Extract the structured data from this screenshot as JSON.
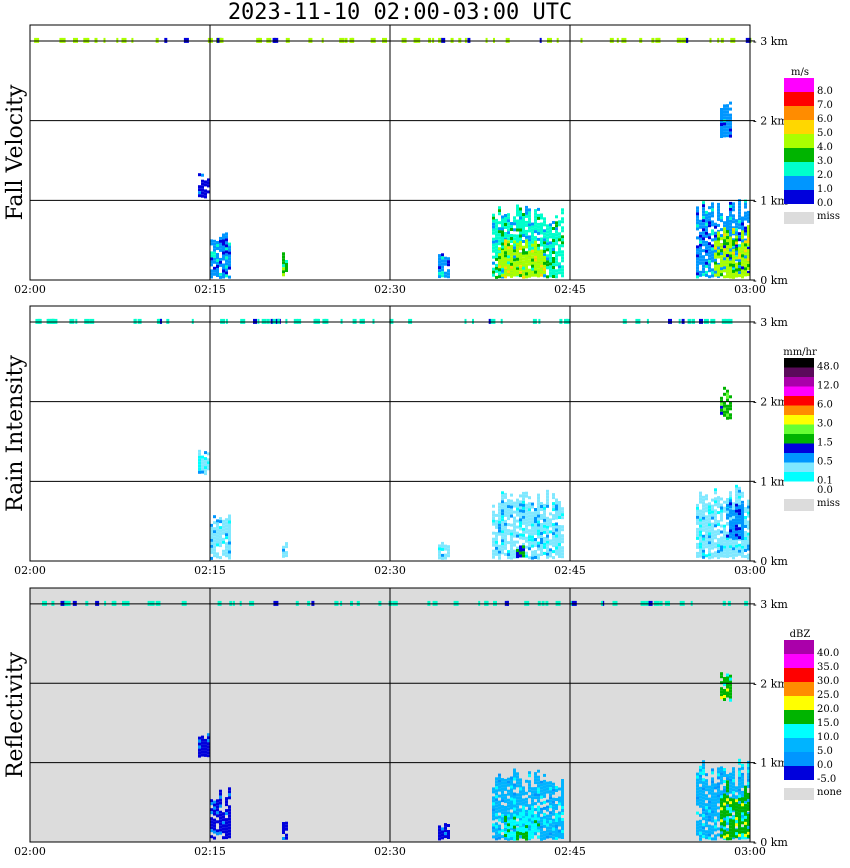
{
  "title": "2023-11-10   02:00-03:00 UTC",
  "chart_data": {
    "type": "heatmap",
    "x_ticks": [
      "02:00",
      "02:15",
      "02:30",
      "02:45",
      "03:00"
    ],
    "x_range_minutes": [
      0,
      60
    ],
    "y_ticks": [
      "0 km",
      "1 km",
      "2 km",
      "3 km"
    ],
    "y_range_km": [
      0,
      3.2
    ],
    "panels": [
      {
        "name": "Fall Velocity",
        "unit": "m/s",
        "background": "#ffffff",
        "levels": [
          "8.0",
          "7.0",
          "6.0",
          "5.0",
          "4.0",
          "3.0",
          "2.0",
          "1.0",
          "0.0"
        ],
        "colors": [
          "#ff00ff",
          "#ff0000",
          "#ff8c00",
          "#ffd700",
          "#aaff00",
          "#00b400",
          "#00ffcc",
          "#0096ff",
          "#0000dc"
        ],
        "missing_label": "miss",
        "missing_color": "#dcdcdc",
        "echoes": [
          {
            "t": [
              14.0,
              15.0
            ],
            "h": [
              1.05,
              1.35
            ],
            "c": 8
          },
          {
            "t": [
              15.0,
              16.5
            ],
            "h": [
              0.05,
              0.65
            ],
            "c": 7
          },
          {
            "t": [
              21.0,
              21.5
            ],
            "h": [
              0.05,
              0.35
            ],
            "c": 5
          },
          {
            "t": [
              34.0,
              35.0
            ],
            "h": [
              0.05,
              0.35
            ],
            "c": 7
          },
          {
            "t": [
              38.5,
              44.5
            ],
            "h": [
              0.05,
              0.95
            ],
            "c": 6
          },
          {
            "t": [
              39.0,
              43.0
            ],
            "h": [
              0.05,
              0.55
            ],
            "c": 4
          },
          {
            "t": [
              55.5,
              60.0
            ],
            "h": [
              0.05,
              1.05
            ],
            "c": 7
          },
          {
            "t": [
              57.0,
              60.0
            ],
            "h": [
              0.05,
              0.7
            ],
            "c": 4
          },
          {
            "t": [
              57.5,
              58.5
            ],
            "h": [
              1.8,
              2.25
            ],
            "c": 7
          }
        ]
      },
      {
        "name": "Rain Intensity",
        "unit": "mm/hr",
        "background": "#ffffff",
        "levels": [
          "48.0",
          "",
          "12.0",
          "",
          "6.0",
          "",
          "3.0",
          "",
          "1.5",
          "",
          "0.5",
          "",
          "0.1",
          "0.0"
        ],
        "colors": [
          "#000000",
          "#5a0a5a",
          "#aa00aa",
          "#ff00ff",
          "#ff0000",
          "#ff8c00",
          "#ffff00",
          "#66ff33",
          "#00b400",
          "#0000dc",
          "#0096ff",
          "#7fe8ff",
          "#00ffff",
          "#ffffff"
        ],
        "missing_label": "miss",
        "missing_color": "#dcdcdc",
        "echoes": [
          {
            "t": [
              14.0,
              15.0
            ],
            "h": [
              1.1,
              1.4
            ],
            "c": 11
          },
          {
            "t": [
              15.0,
              16.5
            ],
            "h": [
              0.05,
              0.65
            ],
            "c": 11
          },
          {
            "t": [
              21.0,
              21.5
            ],
            "h": [
              0.05,
              0.3
            ],
            "c": 11
          },
          {
            "t": [
              34.0,
              35.0
            ],
            "h": [
              0.05,
              0.25
            ],
            "c": 11
          },
          {
            "t": [
              38.5,
              44.5
            ],
            "h": [
              0.05,
              0.9
            ],
            "c": 11
          },
          {
            "t": [
              40.5,
              41.2
            ],
            "h": [
              0.05,
              0.2
            ],
            "c": 9
          },
          {
            "t": [
              55.5,
              60.0
            ],
            "h": [
              0.05,
              1.0
            ],
            "c": 11
          },
          {
            "t": [
              58.0,
              59.5
            ],
            "h": [
              0.3,
              0.8
            ],
            "c": 10
          },
          {
            "t": [
              57.5,
              58.5
            ],
            "h": [
              1.8,
              2.2
            ],
            "c": 8
          }
        ]
      },
      {
        "name": "Reflectivity",
        "unit": "dBZ",
        "background": "#dcdcdc",
        "levels": [
          "40.0",
          "35.0",
          "30.0",
          "25.0",
          "20.0",
          "15.0",
          "10.0",
          "5.0",
          "0.0",
          "-5.0"
        ],
        "colors": [
          "#aa00aa",
          "#ff00ff",
          "#ff0000",
          "#ff8c00",
          "#ffff00",
          "#00b400",
          "#00ffff",
          "#00b4ff",
          "#0096ff",
          "#0000dc"
        ],
        "missing_label": "none",
        "missing_color": "#dcdcdc",
        "echoes": [
          {
            "t": [
              14.0,
              15.0
            ],
            "h": [
              1.1,
              1.4
            ],
            "c": 9
          },
          {
            "t": [
              15.0,
              16.5
            ],
            "h": [
              0.05,
              0.7
            ],
            "c": 9
          },
          {
            "t": [
              21.0,
              21.5
            ],
            "h": [
              0.05,
              0.35
            ],
            "c": 9
          },
          {
            "t": [
              34.0,
              35.0
            ],
            "h": [
              0.05,
              0.25
            ],
            "c": 9
          },
          {
            "t": [
              38.5,
              44.5
            ],
            "h": [
              0.05,
              0.95
            ],
            "c": 7
          },
          {
            "t": [
              39.5,
              42.5
            ],
            "h": [
              0.05,
              0.5
            ],
            "c": 6
          },
          {
            "t": [
              40.5,
              41.3
            ],
            "h": [
              0.05,
              0.15
            ],
            "c": 5
          },
          {
            "t": [
              55.5,
              60.0
            ],
            "h": [
              0.05,
              1.05
            ],
            "c": 7
          },
          {
            "t": [
              57.5,
              60.0
            ],
            "h": [
              0.05,
              0.8
            ],
            "c": 5
          },
          {
            "t": [
              57.5,
              58.5
            ],
            "h": [
              1.8,
              2.2
            ],
            "c": 5
          }
        ]
      }
    ]
  }
}
